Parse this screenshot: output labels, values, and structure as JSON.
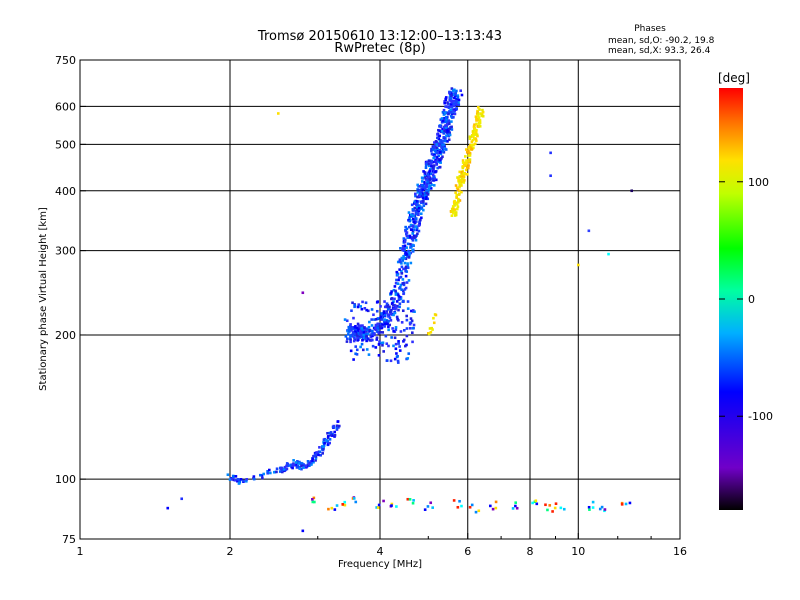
{
  "chart_data": {
    "type": "scatter",
    "title": "Tromsø 20150610 13:12:00–13:13:43",
    "subtitle": "RwPretec (8p)",
    "xlabel": "Frequency [MHz]",
    "ylabel": "Stationary phase Virtual Height [km]",
    "x_scale": "log",
    "y_scale": "log",
    "xlim": [
      1,
      16
    ],
    "ylim": [
      75,
      750
    ],
    "xticks": [
      1,
      2,
      4,
      6,
      8,
      10,
      16
    ],
    "yticks": [
      75,
      100,
      200,
      300,
      400,
      500,
      600,
      750
    ],
    "grid": true,
    "phases_box": {
      "heading": "Phases",
      "line_o": "mean, sd,O: -90.2, 19.8",
      "line_x": "mean, sd,X:  93.3, 26.4"
    },
    "colorbar": {
      "label": "[deg]",
      "range": [
        -180,
        180
      ],
      "ticks": [
        100,
        0,
        -100
      ]
    },
    "o_trace_low": {
      "x": [
        2.0,
        2.1,
        2.5,
        2.6,
        2.7,
        2.8,
        2.9,
        3.0,
        3.1,
        3.2,
        3.3
      ],
      "y": [
        101,
        99,
        104,
        106,
        108,
        106,
        108,
        113,
        118,
        124,
        132
      ]
    },
    "o_trace_f": {
      "x": [
        3.5,
        3.6,
        3.8,
        4.0,
        4.2,
        4.4,
        4.5,
        4.6,
        4.7,
        4.8,
        4.9,
        5.0,
        5.1,
        5.2,
        5.3,
        5.4,
        5.5,
        5.6,
        5.7
      ],
      "y": [
        200,
        205,
        198,
        210,
        225,
        250,
        290,
        320,
        350,
        380,
        400,
        420,
        450,
        480,
        500,
        540,
        580,
        620,
        640
      ]
    },
    "x_trace": {
      "x": [
        5.6,
        5.7,
        5.8,
        5.9,
        6.0,
        6.1,
        6.2,
        6.3,
        6.4
      ],
      "y": [
        360,
        380,
        420,
        440,
        470,
        500,
        530,
        560,
        590
      ]
    },
    "x_trace_low": {
      "x": [
        5.0,
        5.1,
        5.2
      ],
      "y": [
        200,
        210,
        220
      ]
    },
    "e_echoes": {
      "x": [
        3.0,
        3.2,
        3.4,
        3.6,
        4.0,
        4.3,
        4.6,
        5.0,
        5.7,
        6.2,
        6.8,
        7.5,
        8.2,
        8.8,
        9.2,
        10.5,
        11.2,
        12.5
      ],
      "y": [
        90,
        88,
        89,
        91,
        89,
        88,
        90,
        88,
        89,
        87,
        88,
        88,
        89,
        87,
        88,
        88,
        87,
        89
      ]
    },
    "isolated_points": {
      "x": [
        1.5,
        1.6,
        2.5,
        2.8,
        2.8,
        8.8,
        8.8,
        10.0,
        10.5,
        11.5,
        12.8
      ],
      "y": [
        87,
        91,
        580,
        245,
        78,
        480,
        430,
        280,
        330,
        295,
        400
      ]
    }
  }
}
